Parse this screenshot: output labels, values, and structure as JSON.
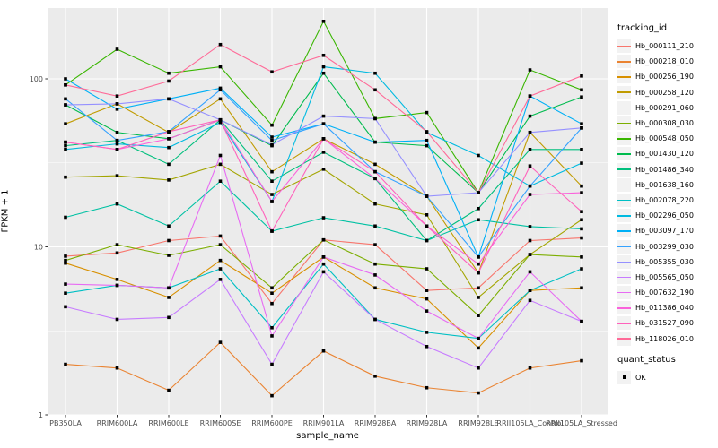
{
  "chart_data": {
    "type": "line",
    "title": "",
    "xlabel": "sample_name",
    "ylabel": "FPKM + 1",
    "y_scale": "log10",
    "y_ticks": [
      1,
      10,
      100
    ],
    "y_minor_ticks": [
      3.162,
      31.62
    ],
    "ylim": [
      1,
      260
    ],
    "grid": true,
    "panel_bg": "#EBEBEB",
    "grid_color": "#FFFFFF",
    "marker": "black-square",
    "legend_position": "right",
    "categories": [
      "PB350LA",
      "RRIM600LA",
      "RRIM600LE",
      "RRIM600SE",
      "RRIM600PE",
      "RRIM901LA",
      "RRIM928BA",
      "RRIM928LA",
      "RRIM928LE",
      "RRII105LA_Control",
      "RRII105LA_Stressed"
    ],
    "legend_title": "tracking_id",
    "series": [
      {
        "name": "Hb_000111_210",
        "color": "#F8766D",
        "values": [
          8.8,
          9.2,
          10.9,
          11.6,
          4.6,
          11.0,
          10.3,
          5.5,
          5.7,
          10.9,
          11.3
        ]
      },
      {
        "name": "Hb_000218_010",
        "color": "#EA8331",
        "values": [
          2.0,
          1.9,
          1.4,
          2.7,
          1.3,
          2.4,
          1.7,
          1.45,
          1.35,
          1.9,
          2.1
        ]
      },
      {
        "name": "Hb_000256_190",
        "color": "#D89000",
        "values": [
          8.0,
          6.4,
          5.0,
          8.3,
          5.3,
          8.7,
          5.7,
          4.9,
          2.5,
          5.5,
          5.7
        ]
      },
      {
        "name": "Hb_000258_120",
        "color": "#C09B00",
        "values": [
          54,
          71,
          48,
          76,
          28,
          44,
          31,
          20,
          7.0,
          48,
          23
        ]
      },
      {
        "name": "Hb_000291_060",
        "color": "#A3A500",
        "values": [
          26,
          26.5,
          25,
          31,
          20.5,
          29,
          18,
          15.5,
          5.0,
          9.0,
          14.5
        ]
      },
      {
        "name": "Hb_000308_030",
        "color": "#7CAE00",
        "values": [
          8.3,
          10.3,
          8.9,
          10.3,
          5.7,
          11.0,
          7.9,
          7.4,
          3.9,
          9.0,
          8.7
        ]
      },
      {
        "name": "Hb_000548_050",
        "color": "#39B600",
        "values": [
          92,
          150,
          108,
          118,
          53,
          220,
          58,
          63,
          21,
          113,
          86
        ]
      },
      {
        "name": "Hb_001430_120",
        "color": "#00BB4E",
        "values": [
          70,
          48,
          44,
          57,
          40,
          108,
          42,
          40,
          21,
          60,
          78
        ]
      },
      {
        "name": "Hb_001486_340",
        "color": "#00BF7D",
        "values": [
          40,
          43,
          31,
          57,
          24.6,
          36.6,
          25.5,
          10.9,
          16.9,
          38,
          38
        ]
      },
      {
        "name": "Hb_001638_160",
        "color": "#00C1A3",
        "values": [
          15,
          18,
          13.3,
          24.6,
          12.4,
          14.9,
          13.3,
          10.9,
          14.5,
          13.2,
          12.8
        ]
      },
      {
        "name": "Hb_002078_220",
        "color": "#00BFC4",
        "values": [
          5.3,
          5.9,
          5.7,
          7.4,
          3.3,
          7.9,
          3.7,
          3.1,
          2.85,
          5.5,
          7.4
        ]
      },
      {
        "name": "Hb_002296_050",
        "color": "#00BAE0",
        "values": [
          38,
          41,
          39,
          55,
          18.6,
          118,
          108,
          48,
          35,
          23,
          31.5
        ]
      },
      {
        "name": "Hb_003097_170",
        "color": "#00B0F6",
        "values": [
          100,
          66,
          76,
          88,
          45,
          54,
          42,
          43,
          8.7,
          79,
          54
        ]
      },
      {
        "name": "Hb_003299_030",
        "color": "#35A2FF",
        "values": [
          76,
          43,
          48.5,
          86,
          43,
          54,
          28,
          20,
          8.7,
          23,
          51
        ]
      },
      {
        "name": "Hb_005355_030",
        "color": "#9590FF",
        "values": [
          70,
          71,
          76,
          57,
          40.5,
          60,
          58,
          20,
          21,
          48,
          51
        ]
      },
      {
        "name": "Hb_005565_050",
        "color": "#C77CFF",
        "values": [
          4.4,
          3.7,
          3.8,
          6.4,
          2.0,
          7.1,
          3.7,
          2.55,
          1.9,
          4.8,
          3.6
        ]
      },
      {
        "name": "Hb_007632_190",
        "color": "#E76BF3",
        "values": [
          6.0,
          5.9,
          5.7,
          35,
          2.95,
          8.7,
          6.8,
          4.15,
          2.85,
          7.1,
          3.6
        ]
      },
      {
        "name": "Hb_011386_040",
        "color": "#FA62DB",
        "values": [
          42,
          38,
          44,
          57,
          18.6,
          44,
          25.5,
          13.3,
          7.9,
          20.5,
          21
        ]
      },
      {
        "name": "Hb_031527_090",
        "color": "#FF62BC",
        "values": [
          42,
          38,
          48.5,
          57,
          12.4,
          44,
          28,
          13.3,
          7.0,
          30.3,
          16.2
        ]
      },
      {
        "name": "Hb_118026_010",
        "color": "#FF6A98",
        "values": [
          92,
          79,
          97,
          160,
          110,
          138,
          86,
          48.5,
          21,
          79,
          104
        ]
      }
    ],
    "quant_status": {
      "title": "quant_status",
      "items": [
        {
          "label": "OK",
          "marker": "black-square"
        }
      ]
    }
  }
}
